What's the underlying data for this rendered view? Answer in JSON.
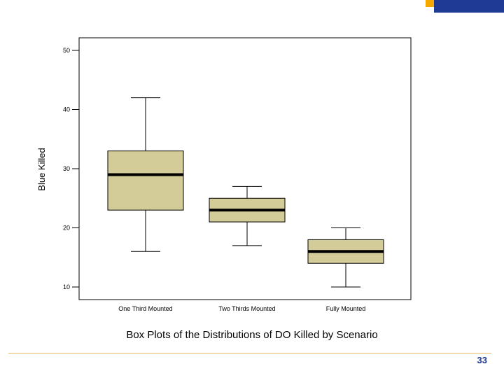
{
  "slide": {
    "caption": "Box Plots of the Distributions of DO Killed by Scenario",
    "page_number": "33"
  },
  "colors": {
    "box_fill": "#d4cc98",
    "plot_background": "#ffffff",
    "corner_gold": "#f5a800",
    "corner_navy": "#1f3a93",
    "footer_rule": "#e8b860",
    "page_number": "#1f3a93"
  },
  "chart_data": {
    "type": "box",
    "title": "",
    "xlabel": "",
    "ylabel": "Blue Killed",
    "ylim": [
      8,
      52
    ],
    "yticks": [
      10,
      20,
      30,
      40,
      50
    ],
    "grid": false,
    "categories": [
      "One Third Mounted",
      "Two Thirds Mounted",
      "Fully Mounted"
    ],
    "boxes": [
      {
        "category": "One Third Mounted",
        "min": 16,
        "q1": 23,
        "median": 29,
        "q3": 33,
        "max": 42
      },
      {
        "category": "Two Thirds Mounted",
        "min": 17,
        "q1": 21,
        "median": 23,
        "q3": 25,
        "max": 27
      },
      {
        "category": "Fully Mounted",
        "min": 10,
        "q1": 14,
        "median": 16,
        "q3": 18,
        "max": 20
      }
    ]
  }
}
